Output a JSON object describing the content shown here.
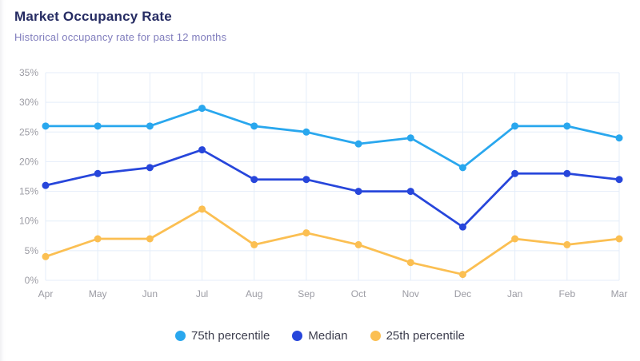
{
  "header": {
    "title": "Market Occupancy Rate",
    "subtitle": "Historical occupancy rate for past 12 months"
  },
  "chart_data": {
    "type": "line",
    "title": "Market Occupancy Rate",
    "subtitle": "Historical occupancy rate for past 12 months",
    "categories": [
      "Apr",
      "May",
      "Jun",
      "Jul",
      "Aug",
      "Sep",
      "Oct",
      "Nov",
      "Dec",
      "Jan",
      "Feb",
      "Mar"
    ],
    "series": [
      {
        "name": "75th percentile",
        "color": "#29a7ee",
        "values": [
          26,
          26,
          26,
          29,
          26,
          25,
          23,
          24,
          19,
          26,
          26,
          24
        ]
      },
      {
        "name": "Median",
        "color": "#2746db",
        "values": [
          16,
          18,
          19,
          22,
          17,
          17,
          15,
          15,
          9,
          18,
          18,
          17
        ]
      },
      {
        "name": "25th percentile",
        "color": "#fbbf52",
        "values": [
          4,
          7,
          7,
          12,
          6,
          8,
          6,
          3,
          1,
          7,
          6,
          7
        ]
      }
    ],
    "ylim": [
      0,
      35
    ],
    "y_tick_values": [
      0,
      5,
      10,
      15,
      20,
      25,
      30,
      35
    ],
    "y_tick_labels": [
      "0%",
      "5%",
      "10%",
      "15%",
      "20%",
      "25%",
      "30%",
      "35%"
    ],
    "unit": "%",
    "grid": "on",
    "grid_color": "#e4edf9",
    "axis_label_color": "#9b9ba3",
    "legend_position": "bottom"
  }
}
